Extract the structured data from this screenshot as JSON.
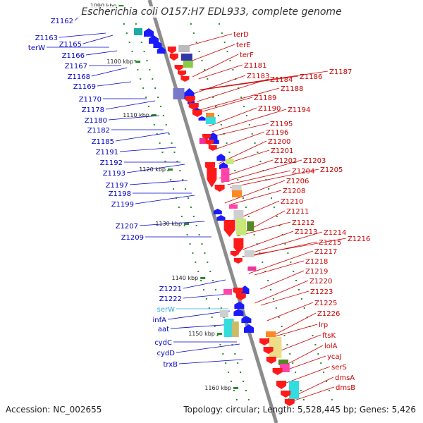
{
  "header": {
    "title": "Escherichia coli O157:H7 EDL933, complete genome"
  },
  "footer": {
    "accession": "Accession: NC_002655",
    "stats": "Topology: circular; Length: 5,528,445 bp; Genes: 5,426"
  },
  "colors": {
    "backbone": "#8c8c8c",
    "left_label": "#0000cc",
    "left_label_rna": "#33aadd",
    "right_label": "#cc0000",
    "tick": "#2a8a2a"
  },
  "kbp_ticks": [
    "1090 kbp",
    "1100 kbp",
    "1110 kbp",
    "1120 kbp",
    "1130 kbp",
    "1140 kbp",
    "1150 kbp",
    "1160 kbp"
  ],
  "left_labels": [
    "Z1162",
    "Z1163",
    "terW",
    "Z1165",
    "Z1166",
    "Z1167",
    "Z1168",
    "Z1169",
    "Z1170",
    "Z1178",
    "Z1180",
    "Z1182",
    "Z1185",
    "Z1191",
    "Z1192",
    "Z1193",
    "Z1197",
    "Z1198",
    "Z1199",
    "Z1207",
    "Z1209",
    "Z1221",
    "Z1222",
    "serW",
    "infA",
    "aat",
    "cydC",
    "cydD",
    "trxB"
  ],
  "right_labels": [
    "terD",
    "terE",
    "terF",
    "Z1181",
    "Z1183",
    "Z1184",
    "Z1186",
    "Z1187",
    "Z1188",
    "Z1189",
    "Z1190",
    "Z1194",
    "Z1195",
    "Z1196",
    "Z1200",
    "Z1201",
    "Z1202",
    "Z1203",
    "Z1204",
    "Z1205",
    "Z1206",
    "Z1208",
    "Z1210",
    "Z1211",
    "Z1212",
    "Z1213",
    "Z1214",
    "Z1215",
    "Z1216",
    "Z1217",
    "Z1218",
    "Z1219",
    "Z1220",
    "Z1223",
    "Z1225",
    "Z1226",
    "lrp",
    "ftsK",
    "lolA",
    "ycaJ",
    "serS",
    "dmsA",
    "dmsB"
  ]
}
